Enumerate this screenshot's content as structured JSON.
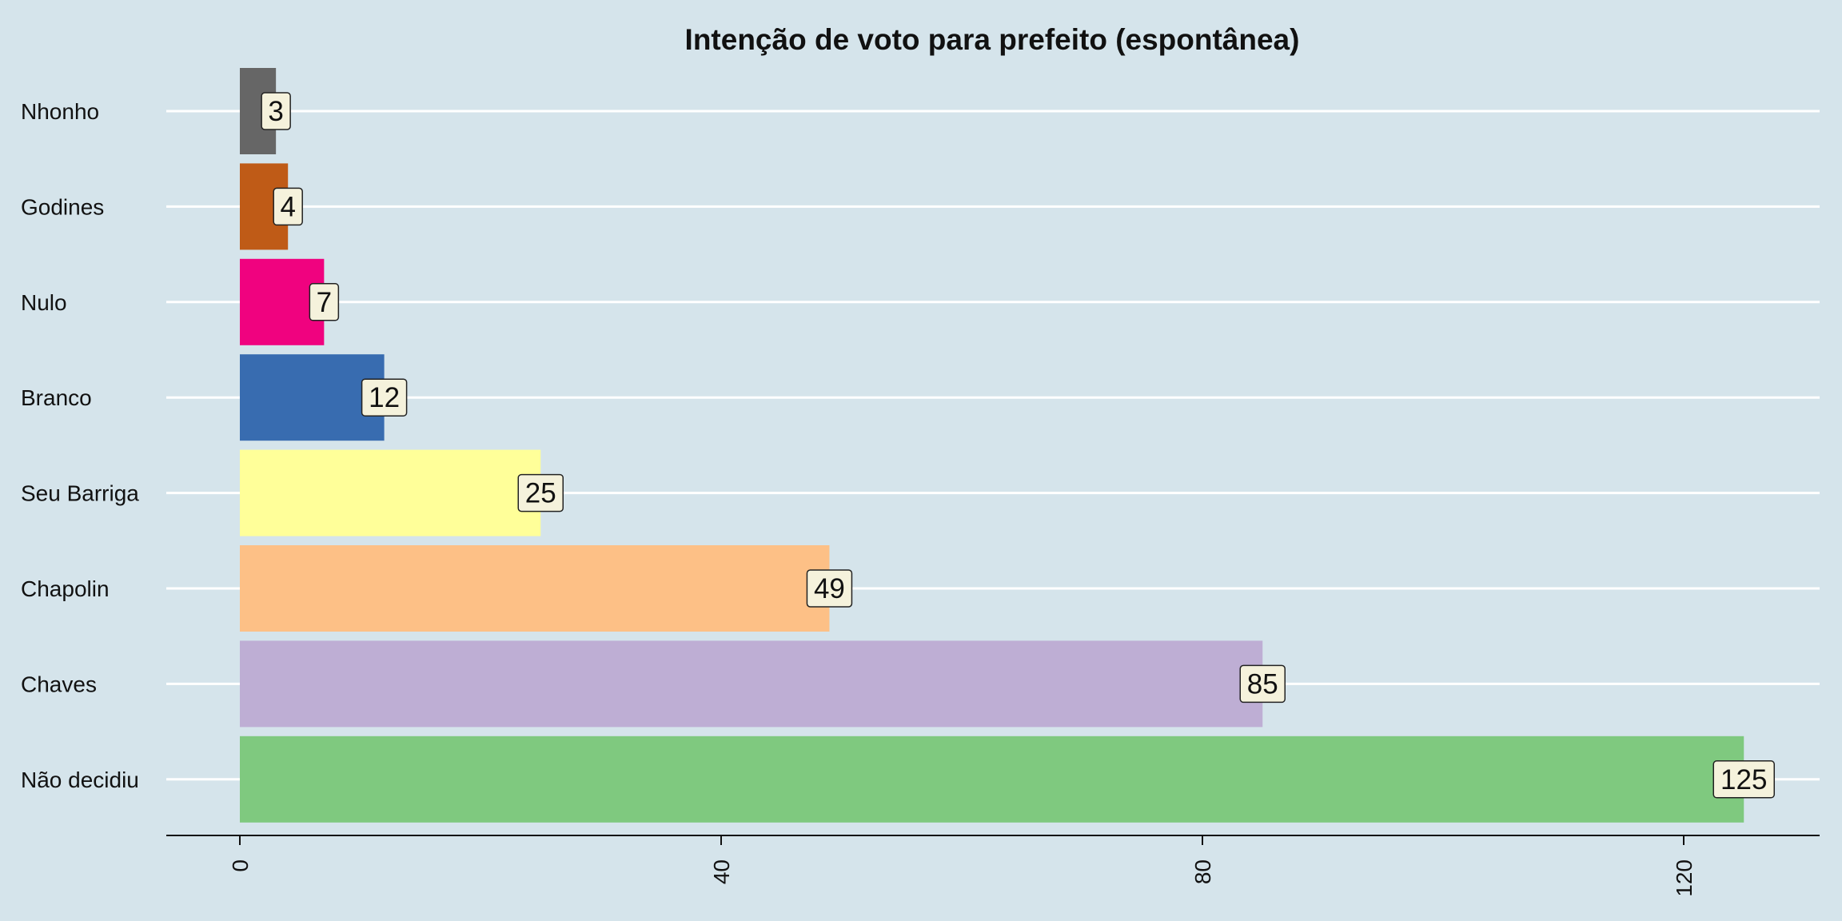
{
  "chart_data": {
    "type": "bar",
    "orientation": "horizontal",
    "title": "Intenção de voto para prefeito (espontânea)",
    "xlabel": "",
    "ylabel": "",
    "categories": [
      "Nhonho",
      "Godines",
      "Nulo",
      "Branco",
      "Seu Barriga",
      "Chapolin",
      "Chaves",
      "Não decidiu"
    ],
    "values": [
      3,
      4,
      7,
      12,
      25,
      49,
      85,
      125
    ],
    "colors": [
      "#666666",
      "#bf5b17",
      "#f0027f",
      "#386cb0",
      "#ffff99",
      "#fdc086",
      "#beaed4",
      "#7fc97f"
    ],
    "xlim": [
      0,
      134
    ],
    "x_ticks": [
      "0",
      "40",
      "80",
      "120"
    ],
    "x_tick_values": [
      0,
      40,
      80,
      120
    ],
    "grid": "horizontal-white",
    "legend": "none",
    "background": "#d5e4eb",
    "label_box_fill": "#f5f2dc"
  }
}
